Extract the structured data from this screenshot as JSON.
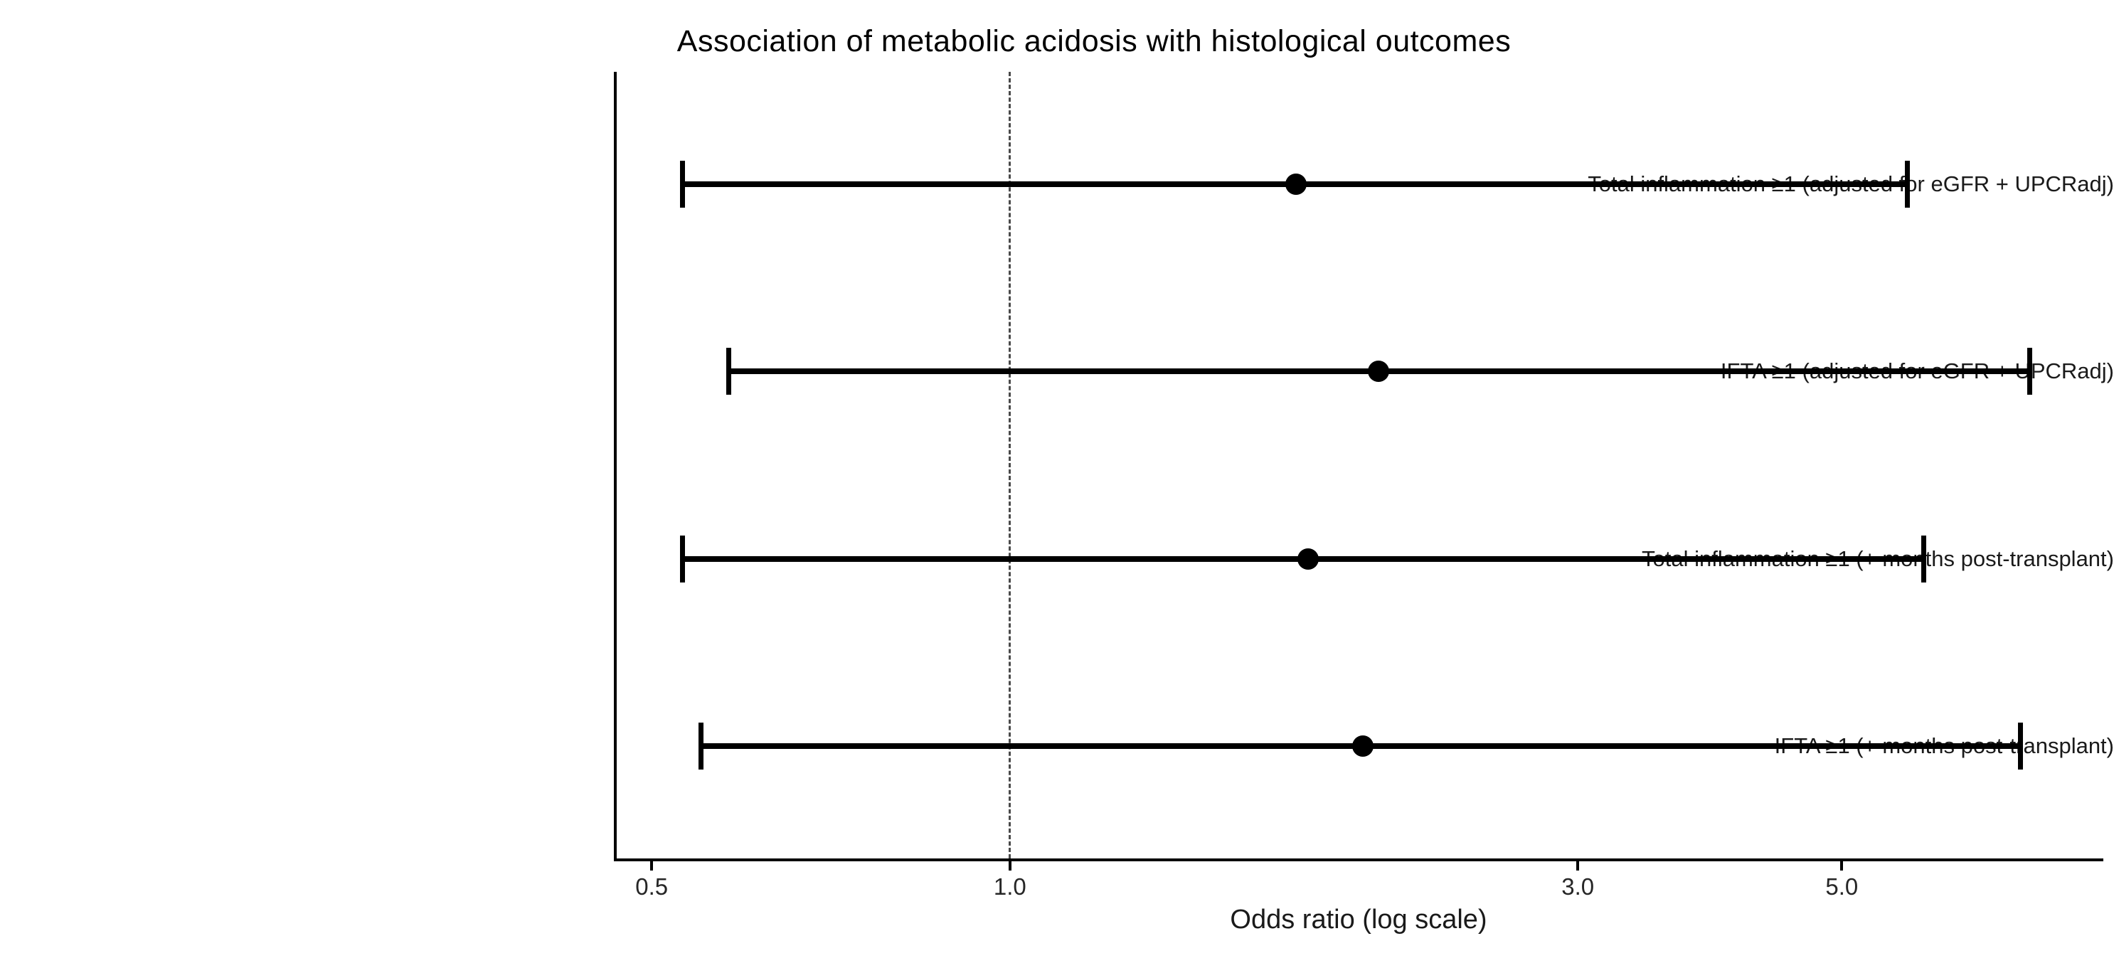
{
  "figure": {
    "title": "Association of metabolic acidosis with histological outcomes"
  },
  "chart_data": {
    "type": "scatter",
    "subtype": "forest-plot",
    "title": "Association of metabolic acidosis with histological outcomes",
    "xlabel": "Odds ratio (log scale)",
    "ylabel": "",
    "x_scale": "log10",
    "xlim": [
      0.466,
      8.27
    ],
    "grid": false,
    "legend": "none",
    "x_ticks": [
      {
        "value": 0.5,
        "label": "0.5"
      },
      {
        "value": 1.0,
        "label": "1.0"
      },
      {
        "value": 3.0,
        "label": "3.0"
      },
      {
        "value": 5.0,
        "label": "5.0"
      }
    ],
    "reference_line": {
      "value": 1.0,
      "style": "dashed",
      "color": "#4a4a4a"
    },
    "rows": [
      {
        "label": "Total inflammation ≥1 (adjusted for eGFR + UPCRadj)",
        "or": 1.74,
        "ci_low": 0.53,
        "ci_high": 5.68
      },
      {
        "label": "IFTA ≥1 (adjusted for eGFR + UPCRadj)",
        "or": 2.04,
        "ci_low": 0.58,
        "ci_high": 7.2
      },
      {
        "label": "Total inflammation ≥1 (+ months post-transplant)",
        "or": 1.78,
        "ci_low": 0.53,
        "ci_high": 5.86
      },
      {
        "label": "IFTA ≥1 (+ months post-transplant)",
        "or": 1.98,
        "ci_low": 0.55,
        "ci_high": 7.07
      }
    ],
    "colors": {
      "point": "#000000",
      "ci_line": "#000000",
      "axis": "#000000",
      "reference_line": "#4a4a4a",
      "background": "#ffffff"
    }
  }
}
